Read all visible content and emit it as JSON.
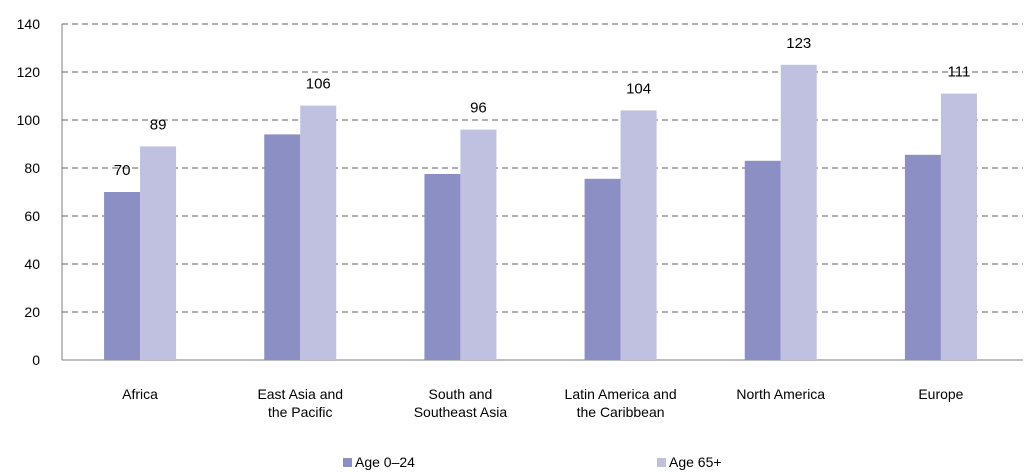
{
  "chart_data": {
    "type": "bar",
    "title": "",
    "xlabel": "",
    "ylabel": "",
    "ylim": [
      0,
      140
    ],
    "yticks": [
      0,
      20,
      40,
      60,
      80,
      100,
      120,
      140
    ],
    "grid": true,
    "legend_position": "bottom",
    "categories": [
      [
        "Africa"
      ],
      [
        "East Asia and",
        "the Pacific"
      ],
      [
        "South and",
        "Southeast Asia"
      ],
      [
        "Latin America and",
        "the Caribbean"
      ],
      [
        "North America"
      ],
      [
        "Europe"
      ]
    ],
    "series": [
      {
        "name": "Age 0–24",
        "color": "#8B8FC4",
        "values": [
          70,
          94,
          77.5,
          75.5,
          83,
          85.5
        ],
        "labels": [
          "70",
          "",
          "",
          "",
          "",
          ""
        ]
      },
      {
        "name": "Age 65+",
        "color": "#C0C0E0",
        "values": [
          89,
          106,
          96,
          104,
          123,
          111
        ],
        "labels": [
          "89",
          "106",
          "96",
          "104",
          "123",
          "111"
        ]
      }
    ]
  }
}
